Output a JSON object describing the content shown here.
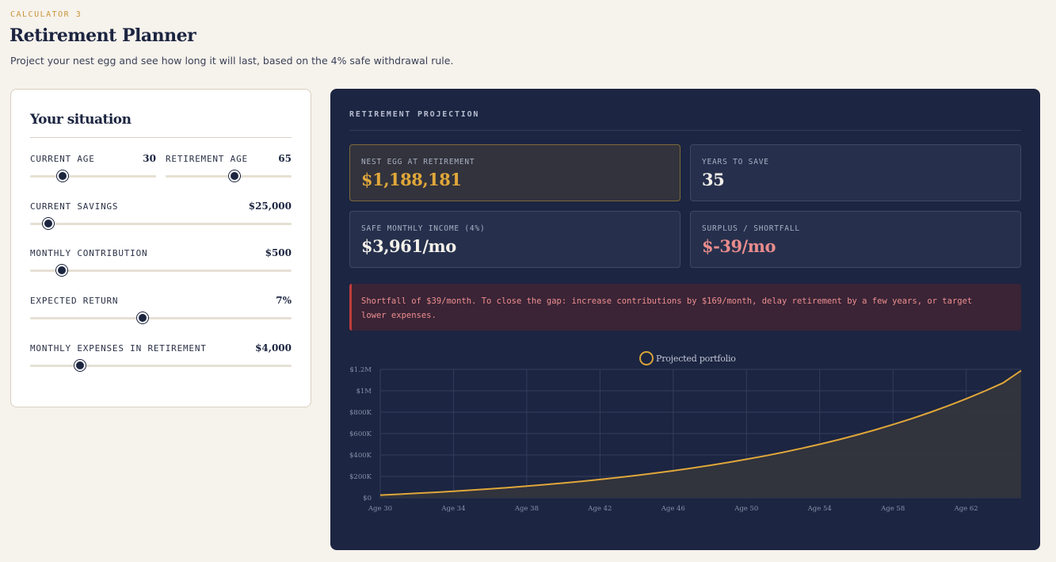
{
  "header": {
    "eyebrow": "CALCULATOR 3",
    "title": "Retirement Planner",
    "subtitle": "Project your nest egg and see how long it will last, based on the 4% safe withdrawal rule."
  },
  "inputs": {
    "title": "Your situation",
    "current_age": {
      "label": "CURRENT AGE",
      "value": "30",
      "slider_fraction": 0.26
    },
    "retirement_age": {
      "label": "RETIREMENT AGE",
      "value": "65",
      "slider_fraction": 0.55
    },
    "current_savings": {
      "label": "CURRENT SAVINGS",
      "value": "$25,000",
      "slider_fraction": 0.07
    },
    "monthly_contribution": {
      "label": "MONTHLY CONTRIBUTION",
      "value": "$500",
      "slider_fraction": 0.12
    },
    "expected_return": {
      "label": "EXPECTED RETURN",
      "value": "7%",
      "slider_fraction": 0.43
    },
    "monthly_expenses": {
      "label": "MONTHLY EXPENSES IN RETIREMENT",
      "value": "$4,000",
      "slider_fraction": 0.19
    }
  },
  "projection": {
    "title": "RETIREMENT PROJECTION",
    "stats": [
      {
        "label": "NEST EGG AT RETIREMENT",
        "value": "$1,188,181"
      },
      {
        "label": "YEARS TO SAVE",
        "value": "35"
      },
      {
        "label": "SAFE MONTHLY INCOME (4%)",
        "value": "$3,961/mo"
      },
      {
        "label": "SURPLUS / SHORTFALL",
        "value": "$-39/mo"
      }
    ],
    "alert": "Shortfall of $39/month. To close the gap: increase contributions by $169/month, delay retirement by a few years, or target lower expenses."
  },
  "colors": {
    "accent": "#e0a73a",
    "panel": "#1c2541",
    "negative": "#e98c8c",
    "alert_border": "#c13c3c"
  },
  "chart_data": {
    "type": "area",
    "series": [
      {
        "name": "Projected portfolio",
        "x": [
          "Age 30",
          "Age 31",
          "Age 32",
          "Age 33",
          "Age 34",
          "Age 35",
          "Age 36",
          "Age 37",
          "Age 38",
          "Age 39",
          "Age 40",
          "Age 41",
          "Age 42",
          "Age 43",
          "Age 44",
          "Age 45",
          "Age 46",
          "Age 47",
          "Age 48",
          "Age 49",
          "Age 50",
          "Age 51",
          "Age 52",
          "Age 53",
          "Age 54",
          "Age 55",
          "Age 56",
          "Age 57",
          "Age 58",
          "Age 59",
          "Age 60",
          "Age 61",
          "Age 62",
          "Age 63",
          "Age 64",
          "Age 65"
        ],
        "values": [
          25000,
          33160,
          41900,
          51240,
          61240,
          71940,
          83400,
          95650,
          108770,
          122800,
          137810,
          153880,
          171070,
          189470,
          209150,
          230210,
          252750,
          276860,
          302660,
          330270,
          359810,
          391420,
          425250,
          461440,
          500160,
          541590,
          585930,
          633370,
          684120,
          738430,
          796540,
          858720,
          925250,
          996440,
          1072620,
          1188181
        ]
      }
    ],
    "categories": [
      "Age 30",
      "Age 34",
      "Age 38",
      "Age 42",
      "Age 46",
      "Age 50",
      "Age 54",
      "Age 58",
      "Age 62"
    ],
    "yticks": [
      "$0",
      "$200K",
      "$400K",
      "$600K",
      "$800K",
      "$1M",
      "$1.2M"
    ],
    "ylim": [
      0,
      1200000
    ],
    "grid": true,
    "legend": "top-center"
  }
}
